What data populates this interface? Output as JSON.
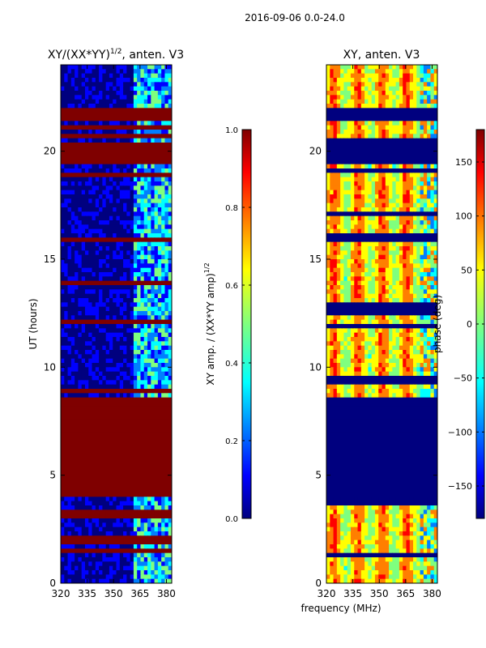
{
  "suptitle": "2016-09-06 0.0-24.0",
  "colors": {
    "jet": [
      "#00007f",
      "#0000ff",
      "#007fff",
      "#00ffff",
      "#7fff7f",
      "#ffff00",
      "#ff7f00",
      "#ff0000",
      "#7f0000"
    ]
  },
  "chart_data": [
    {
      "type": "heatmap",
      "title_main": "XY/(XX*YY)",
      "title_sup": "1/2",
      "title_tail": ", anten. V3",
      "xlabel": "",
      "ylabel": "UT (hours)",
      "xlim": [
        320,
        383
      ],
      "ylim": [
        0,
        24
      ],
      "xticks": [
        320,
        335,
        350,
        365,
        380
      ],
      "yticks": [
        0,
        5,
        10,
        15,
        20
      ],
      "flagged_blocks_hours": [
        [
          3.9,
          8.6
        ],
        [
          19.5,
          20.3
        ],
        [
          21.4,
          22.0
        ]
      ],
      "high_amp_channel_range_mhz": [
        360,
        383
      ]
    },
    {
      "type": "colorbar",
      "label_main": "XY amp. / (XX*YY amp)",
      "label_sup": "1/2",
      "range": [
        0.0,
        1.0
      ],
      "ticks": [
        "0.0",
        "0.2",
        "0.4",
        "0.6",
        "0.8",
        "1.0"
      ]
    },
    {
      "type": "heatmap",
      "title_main": "XY, anten. V3",
      "xlabel": "frequency (MHz)",
      "ylabel": "",
      "xlim": [
        320,
        383
      ],
      "ylim": [
        0,
        24
      ],
      "xticks": [
        320,
        335,
        350,
        365,
        380
      ],
      "yticks": [
        0,
        5,
        10,
        15,
        20
      ],
      "flagged_blocks_hours": [
        [
          3.9,
          8.6
        ],
        [
          19.5,
          20.3
        ],
        [
          21.4,
          22.0
        ]
      ]
    },
    {
      "type": "colorbar",
      "label_main": "phase (deg)",
      "range": [
        -180,
        180
      ],
      "ticks": [
        "150",
        "100",
        "50",
        "0",
        "−50",
        "−100",
        "−150"
      ]
    }
  ]
}
